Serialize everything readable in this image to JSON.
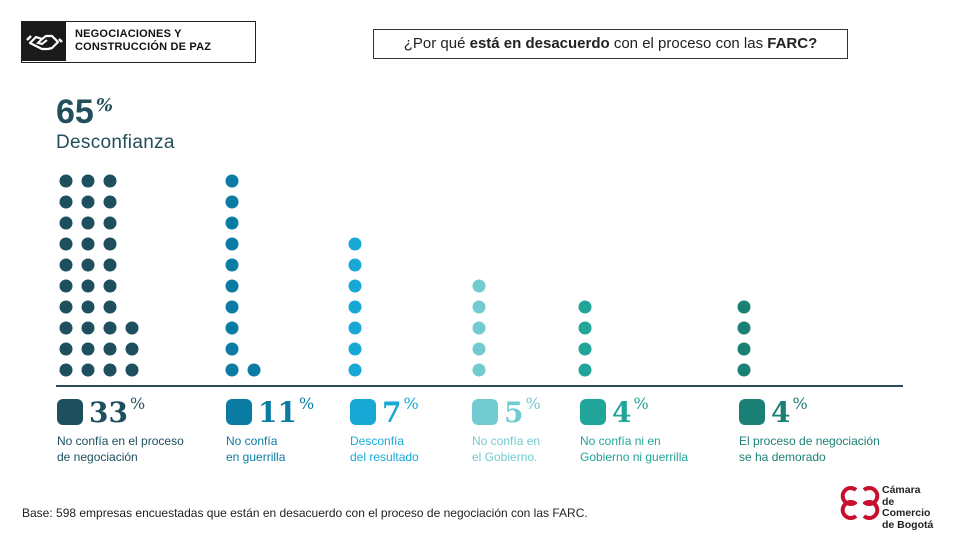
{
  "header": {
    "badge_line1": "NEGOCIACIONES Y",
    "badge_line2": "CONSTRUCCIÓN DE PAZ",
    "icon": "handshake-icon",
    "question_pre": "¿Por qué ",
    "question_bold": "está en desacuerdo",
    "question_mid": " con el proceso con las ",
    "question_bold2": "FARC?"
  },
  "headline": {
    "value": "65",
    "unit": "%",
    "label": "Desconfianza"
  },
  "chart_data": {
    "type": "bar",
    "title": "",
    "categories": [
      "No confía en el proceso de negociación",
      "No confía en guerrilla",
      "Desconfía del resultado",
      "No confía en el Gobierno.",
      "No confía ni en Gobierno ni guerrilla",
      "El proceso de negociación se ha demorado"
    ],
    "values": [
      33,
      11,
      7,
      5,
      4,
      4
    ],
    "unit": "%",
    "colors": [
      "#1d4f5e",
      "#0a7ba3",
      "#17a8d6",
      "#72cbd0",
      "#21a59a",
      "#1a7f74"
    ]
  },
  "categories": [
    {
      "value": "33",
      "unit": "%",
      "line1": "No confía en el proceso",
      "line2": "de negociación"
    },
    {
      "value": "11",
      "unit": "%",
      "line1": "No confía",
      "line2": "en guerrilla"
    },
    {
      "value": "7",
      "unit": "%",
      "line1": "Desconfía",
      "line2": "del resultado"
    },
    {
      "value": "5",
      "unit": "%",
      "line1": "No confía en",
      "line2": "el Gobierno."
    },
    {
      "value": "4",
      "unit": "%",
      "line1": "No confía ni en",
      "line2": "Gobierno ni guerrilla"
    },
    {
      "value": "4",
      "unit": "%",
      "line1": "El proceso de negociación",
      "line2": "se ha demorado"
    }
  ],
  "footer": {
    "text": "Base: 598  empresas encuestadas que están en desacuerdo con el proceso de negociación con las FARC."
  },
  "logo": {
    "line1": "Cámara",
    "line2": "de Comercio",
    "line3": "de Bogotá",
    "color": "#c8102e"
  }
}
